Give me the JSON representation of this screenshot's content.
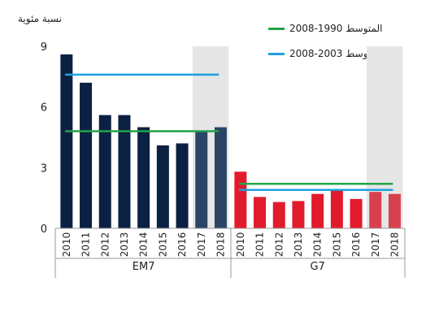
{
  "chart_data": {
    "type": "bar",
    "ylabel": "نسبة مئوية",
    "ylim": [
      0,
      9
    ],
    "yticks": [
      0,
      3,
      6,
      9
    ],
    "grid": false,
    "legend_placement": "top-right",
    "groups": [
      {
        "name": "EM7",
        "categories": [
          "2010",
          "2011",
          "2012",
          "2013",
          "2014",
          "2015",
          "2016",
          "2017",
          "2018"
        ],
        "values": [
          8.6,
          7.2,
          5.6,
          5.6,
          5.0,
          4.1,
          4.2,
          4.8,
          5.0
        ],
        "forecast_from": "2017",
        "color": "#0b2042",
        "forecast_color": "#2b4566",
        "avg_1990_2008": 4.8,
        "avg_2003_2008": 7.6
      },
      {
        "name": "G7",
        "categories": [
          "2010",
          "2011",
          "2012",
          "2013",
          "2014",
          "2015",
          "2016",
          "2017",
          "2018"
        ],
        "values": [
          2.8,
          1.55,
          1.3,
          1.35,
          1.7,
          1.85,
          1.45,
          1.8,
          1.7
        ],
        "forecast_from": "2017",
        "color": "#e11b2b",
        "forecast_color": "#d9404e",
        "avg_1990_2008": 2.2,
        "avg_2003_2008": 1.9
      }
    ],
    "legend": [
      {
        "label": "المتوسط 1990-2008",
        "color": "#21a348",
        "key": "avg_1990_2008"
      },
      {
        "label": "المتوسط 2003-2008",
        "color": "#1ca0e0",
        "key": "avg_2003_2008"
      }
    ],
    "forecast_shade_color": "#e6e6e6"
  }
}
